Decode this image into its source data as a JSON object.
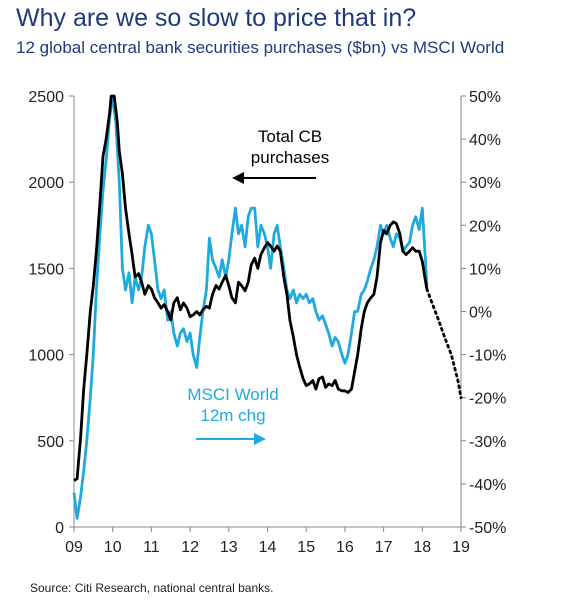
{
  "title": "Why are we so slow to price that in?",
  "subtitle": "12 global central bank securities purchases ($bn) vs MSCI World",
  "source": "Source: Citi Research, national central banks.",
  "colors": {
    "cb_series": "#000000",
    "msci_series": "#1eaadf",
    "axis": "#888888"
  },
  "chart_data": {
    "type": "line",
    "x_ticks": [
      "09",
      "10",
      "11",
      "12",
      "13",
      "14",
      "15",
      "16",
      "17",
      "18",
      "19"
    ],
    "xlim": [
      2009,
      2019
    ],
    "y_left_ticks": [
      "0",
      "500",
      "1000",
      "1500",
      "2000",
      "2500"
    ],
    "y_left_lim": [
      0,
      2500
    ],
    "y_right_ticks": [
      "50%",
      "40%",
      "30%",
      "20%",
      "10%",
      "0%",
      "-10%",
      "-20%",
      "-30%",
      "-40%",
      "-50%"
    ],
    "y_right_lim": [
      -50,
      50
    ],
    "grid": false,
    "annotations": [
      {
        "lines": [
          "Total CB",
          "purchases"
        ],
        "series": "cb",
        "arrow": "left",
        "axis": "left"
      },
      {
        "lines": [
          "MSCI World",
          "12m chg"
        ],
        "series": "msci",
        "arrow": "right",
        "axis": "right"
      }
    ],
    "series": [
      {
        "key": "cb",
        "axis": "left",
        "points": [
          [
            2009.0,
            270
          ],
          [
            2009.08,
            280
          ],
          [
            2009.17,
            520
          ],
          [
            2009.25,
            800
          ],
          [
            2009.33,
            1000
          ],
          [
            2009.42,
            1250
          ],
          [
            2009.5,
            1400
          ],
          [
            2009.58,
            1600
          ],
          [
            2009.67,
            1880
          ],
          [
            2009.75,
            2150
          ],
          [
            2009.83,
            2250
          ],
          [
            2009.92,
            2400
          ],
          [
            2009.96,
            2500
          ],
          [
            2010.04,
            2500
          ],
          [
            2010.12,
            2350
          ],
          [
            2010.17,
            2180
          ],
          [
            2010.25,
            2050
          ],
          [
            2010.33,
            1850
          ],
          [
            2010.42,
            1700
          ],
          [
            2010.5,
            1580
          ],
          [
            2010.58,
            1450
          ],
          [
            2010.67,
            1470
          ],
          [
            2010.75,
            1420
          ],
          [
            2010.83,
            1350
          ],
          [
            2010.92,
            1400
          ],
          [
            2011.0,
            1380
          ],
          [
            2011.08,
            1330
          ],
          [
            2011.17,
            1300
          ],
          [
            2011.25,
            1270
          ],
          [
            2011.33,
            1290
          ],
          [
            2011.42,
            1250
          ],
          [
            2011.5,
            1200
          ],
          [
            2011.58,
            1300
          ],
          [
            2011.67,
            1330
          ],
          [
            2011.75,
            1260
          ],
          [
            2011.83,
            1300
          ],
          [
            2011.92,
            1270
          ],
          [
            2012.0,
            1220
          ],
          [
            2012.08,
            1230
          ],
          [
            2012.17,
            1250
          ],
          [
            2012.25,
            1230
          ],
          [
            2012.33,
            1260
          ],
          [
            2012.42,
            1280
          ],
          [
            2012.5,
            1270
          ],
          [
            2012.58,
            1350
          ],
          [
            2012.67,
            1400
          ],
          [
            2012.75,
            1380
          ],
          [
            2012.83,
            1420
          ],
          [
            2012.92,
            1460
          ],
          [
            2013.0,
            1400
          ],
          [
            2013.08,
            1330
          ],
          [
            2013.17,
            1300
          ],
          [
            2013.25,
            1420
          ],
          [
            2013.33,
            1400
          ],
          [
            2013.42,
            1370
          ],
          [
            2013.5,
            1420
          ],
          [
            2013.58,
            1520
          ],
          [
            2013.67,
            1560
          ],
          [
            2013.75,
            1500
          ],
          [
            2013.83,
            1580
          ],
          [
            2013.92,
            1620
          ],
          [
            2014.0,
            1650
          ],
          [
            2014.08,
            1630
          ],
          [
            2014.17,
            1600
          ],
          [
            2014.25,
            1630
          ],
          [
            2014.33,
            1600
          ],
          [
            2014.42,
            1450
          ],
          [
            2014.5,
            1350
          ],
          [
            2014.58,
            1200
          ],
          [
            2014.67,
            1100
          ],
          [
            2014.75,
            1000
          ],
          [
            2014.83,
            930
          ],
          [
            2014.92,
            860
          ],
          [
            2015.0,
            820
          ],
          [
            2015.08,
            830
          ],
          [
            2015.17,
            850
          ],
          [
            2015.25,
            800
          ],
          [
            2015.33,
            860
          ],
          [
            2015.42,
            870
          ],
          [
            2015.5,
            810
          ],
          [
            2015.58,
            830
          ],
          [
            2015.67,
            820
          ],
          [
            2015.75,
            850
          ],
          [
            2015.83,
            800
          ],
          [
            2015.92,
            790
          ],
          [
            2016.0,
            790
          ],
          [
            2016.08,
            780
          ],
          [
            2016.17,
            800
          ],
          [
            2016.25,
            900
          ],
          [
            2016.33,
            1000
          ],
          [
            2016.42,
            1150
          ],
          [
            2016.5,
            1250
          ],
          [
            2016.58,
            1300
          ],
          [
            2016.67,
            1330
          ],
          [
            2016.75,
            1350
          ],
          [
            2016.83,
            1450
          ],
          [
            2016.92,
            1650
          ],
          [
            2017.0,
            1720
          ],
          [
            2017.08,
            1700
          ],
          [
            2017.17,
            1750
          ],
          [
            2017.25,
            1770
          ],
          [
            2017.33,
            1760
          ],
          [
            2017.42,
            1700
          ],
          [
            2017.5,
            1600
          ],
          [
            2017.58,
            1580
          ],
          [
            2017.67,
            1600
          ],
          [
            2017.75,
            1620
          ],
          [
            2017.83,
            1600
          ],
          [
            2017.92,
            1600
          ],
          [
            2018.0,
            1540
          ],
          [
            2018.08,
            1430
          ],
          [
            2018.12,
            1380
          ]
        ],
        "forecast_points": [
          [
            2018.12,
            1380
          ],
          [
            2018.25,
            1300
          ],
          [
            2018.42,
            1200
          ],
          [
            2018.58,
            1100
          ],
          [
            2018.75,
            1000
          ],
          [
            2018.92,
            850
          ],
          [
            2019.0,
            750
          ]
        ]
      },
      {
        "key": "msci",
        "axis": "right",
        "points": [
          [
            2009.0,
            -42
          ],
          [
            2009.08,
            -48
          ],
          [
            2009.17,
            -43
          ],
          [
            2009.25,
            -37
          ],
          [
            2009.33,
            -30
          ],
          [
            2009.42,
            -20
          ],
          [
            2009.5,
            -10
          ],
          [
            2009.58,
            5
          ],
          [
            2009.67,
            18
          ],
          [
            2009.75,
            28
          ],
          [
            2009.83,
            35
          ],
          [
            2009.92,
            45
          ],
          [
            2010.0,
            50
          ],
          [
            2010.08,
            44
          ],
          [
            2010.17,
            30
          ],
          [
            2010.25,
            10
          ],
          [
            2010.33,
            5
          ],
          [
            2010.42,
            9
          ],
          [
            2010.5,
            2
          ],
          [
            2010.58,
            8
          ],
          [
            2010.67,
            5
          ],
          [
            2010.75,
            8
          ],
          [
            2010.83,
            15
          ],
          [
            2010.92,
            20
          ],
          [
            2011.0,
            18
          ],
          [
            2011.08,
            12
          ],
          [
            2011.17,
            5
          ],
          [
            2011.25,
            3
          ],
          [
            2011.33,
            5
          ],
          [
            2011.42,
            -2
          ],
          [
            2011.5,
            0
          ],
          [
            2011.58,
            -5
          ],
          [
            2011.67,
            -8
          ],
          [
            2011.75,
            -5
          ],
          [
            2011.83,
            -4
          ],
          [
            2011.92,
            -7
          ],
          [
            2012.0,
            -5
          ],
          [
            2012.08,
            -10
          ],
          [
            2012.17,
            -13
          ],
          [
            2012.25,
            -6
          ],
          [
            2012.33,
            0
          ],
          [
            2012.42,
            5
          ],
          [
            2012.5,
            17
          ],
          [
            2012.58,
            12
          ],
          [
            2012.67,
            10
          ],
          [
            2012.75,
            8
          ],
          [
            2012.83,
            12
          ],
          [
            2012.92,
            8
          ],
          [
            2013.0,
            12
          ],
          [
            2013.08,
            18
          ],
          [
            2013.17,
            24
          ],
          [
            2013.25,
            18
          ],
          [
            2013.33,
            20
          ],
          [
            2013.42,
            15
          ],
          [
            2013.5,
            22
          ],
          [
            2013.58,
            24
          ],
          [
            2013.67,
            24
          ],
          [
            2013.75,
            15
          ],
          [
            2013.83,
            20
          ],
          [
            2013.92,
            18
          ],
          [
            2014.0,
            15
          ],
          [
            2014.08,
            10
          ],
          [
            2014.17,
            18
          ],
          [
            2014.25,
            20
          ],
          [
            2014.33,
            15
          ],
          [
            2014.42,
            10
          ],
          [
            2014.5,
            5
          ],
          [
            2014.58,
            3
          ],
          [
            2014.67,
            5
          ],
          [
            2014.75,
            2
          ],
          [
            2014.83,
            4
          ],
          [
            2014.92,
            3
          ],
          [
            2015.0,
            4
          ],
          [
            2015.08,
            2
          ],
          [
            2015.17,
            3
          ],
          [
            2015.25,
            0
          ],
          [
            2015.33,
            -2
          ],
          [
            2015.42,
            -1
          ],
          [
            2015.5,
            -3
          ],
          [
            2015.58,
            -5
          ],
          [
            2015.67,
            -8
          ],
          [
            2015.75,
            -6
          ],
          [
            2015.83,
            -7
          ],
          [
            2015.92,
            -10
          ],
          [
            2016.0,
            -12
          ],
          [
            2016.08,
            -10
          ],
          [
            2016.17,
            -5
          ],
          [
            2016.25,
            0
          ],
          [
            2016.33,
            0
          ],
          [
            2016.42,
            4
          ],
          [
            2016.5,
            5
          ],
          [
            2016.58,
            7
          ],
          [
            2016.67,
            10
          ],
          [
            2016.75,
            12
          ],
          [
            2016.83,
            15
          ],
          [
            2016.92,
            20
          ],
          [
            2017.0,
            18
          ],
          [
            2017.08,
            20
          ],
          [
            2017.17,
            17
          ],
          [
            2017.25,
            15
          ],
          [
            2017.33,
            18
          ],
          [
            2017.42,
            17
          ],
          [
            2017.5,
            14
          ],
          [
            2017.58,
            15
          ],
          [
            2017.67,
            16
          ],
          [
            2017.75,
            20
          ],
          [
            2017.83,
            22
          ],
          [
            2017.92,
            19
          ],
          [
            2018.0,
            24
          ],
          [
            2018.08,
            12
          ],
          [
            2018.12,
            6
          ]
        ]
      }
    ]
  }
}
